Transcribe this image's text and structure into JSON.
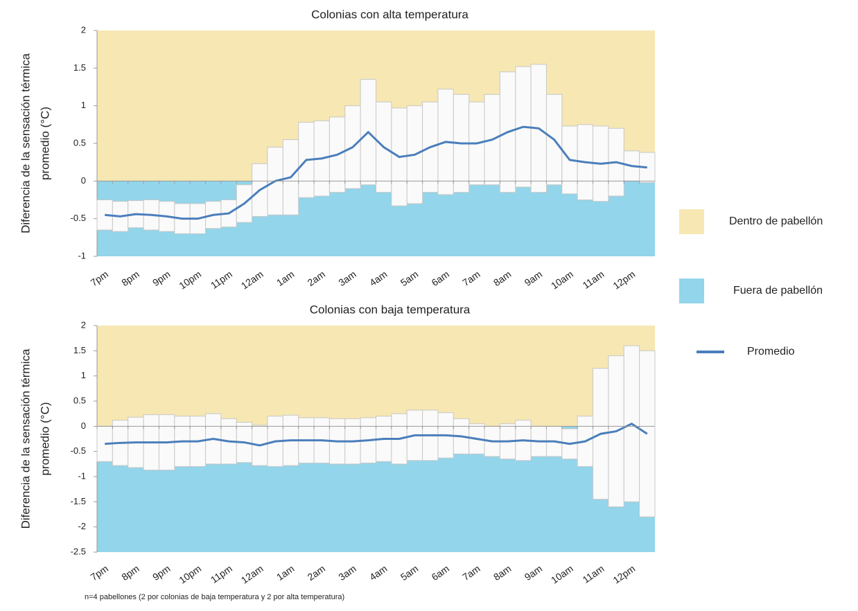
{
  "chart_data": [
    {
      "type": "line",
      "title": "Colonias con alta temperatura",
      "ylabel": [
        "Diferencia de la sensación térmica",
        "promedio (°C)"
      ],
      "categories": [
        "7pm",
        null,
        "8pm",
        null,
        "9pm",
        null,
        "10pm",
        null,
        "11pm",
        null,
        "12am",
        null,
        "1am",
        null,
        "2am",
        null,
        "3am",
        null,
        "4am",
        null,
        "5am",
        null,
        "6am",
        null,
        "7am",
        null,
        "8am",
        null,
        "9am",
        null,
        "10am",
        null,
        "11am",
        null,
        "12pm",
        null
      ],
      "series": [
        {
          "name": "Promedio",
          "color": "#4a7ebb",
          "values": [
            -0.45,
            -0.47,
            -0.44,
            -0.45,
            -0.47,
            -0.5,
            -0.5,
            -0.45,
            -0.43,
            -0.3,
            -0.12,
            0.0,
            0.05,
            0.28,
            0.3,
            0.35,
            0.45,
            0.65,
            0.45,
            0.32,
            0.35,
            0.45,
            0.52,
            0.5,
            0.5,
            0.55,
            0.65,
            0.72,
            0.7,
            0.55,
            0.28,
            0.25,
            0.23,
            0.25,
            0.2,
            0.18
          ],
          "errors": [
            0.2,
            0.2,
            0.18,
            0.2,
            0.2,
            0.2,
            0.2,
            0.18,
            0.18,
            0.25,
            0.35,
            0.45,
            0.5,
            0.5,
            0.5,
            0.5,
            0.55,
            0.7,
            0.6,
            0.65,
            0.65,
            0.6,
            0.7,
            0.65,
            0.55,
            0.6,
            0.8,
            0.8,
            0.85,
            0.6,
            0.45,
            0.5,
            0.5,
            0.45,
            0.2,
            0.2
          ]
        }
      ],
      "ylim": [
        -1,
        2
      ],
      "yticks": [
        -1,
        -0.5,
        0,
        0.5,
        1,
        1.5,
        2
      ]
    },
    {
      "type": "line",
      "title": "Colonias con baja temperatura",
      "ylabel": [
        "Diferencia de la sensación térmica",
        "promedio (°C)"
      ],
      "categories": [
        "7pm",
        null,
        "8pm",
        null,
        "9pm",
        null,
        "10pm",
        null,
        "11pm",
        null,
        "12am",
        null,
        "1am",
        null,
        "2am",
        null,
        "3am",
        null,
        "4am",
        null,
        "5am",
        null,
        "6am",
        null,
        "7am",
        null,
        "8am",
        null,
        "9am",
        null,
        "10am",
        null,
        "11am",
        null,
        "12pm",
        null
      ],
      "series": [
        {
          "name": "Promedio",
          "color": "#4a7ebb",
          "values": [
            -0.35,
            -0.33,
            -0.32,
            -0.32,
            -0.32,
            -0.3,
            -0.3,
            -0.25,
            -0.3,
            -0.32,
            -0.38,
            -0.3,
            -0.28,
            -0.28,
            -0.28,
            -0.3,
            -0.3,
            -0.28,
            -0.25,
            -0.25,
            -0.18,
            -0.18,
            -0.18,
            -0.2,
            -0.25,
            -0.3,
            -0.3,
            -0.28,
            -0.3,
            -0.3,
            -0.35,
            -0.3,
            -0.15,
            -0.1,
            0.05,
            -0.15
          ],
          "errors": [
            0.35,
            0.45,
            0.5,
            0.55,
            0.55,
            0.5,
            0.5,
            0.5,
            0.45,
            0.4,
            0.4,
            0.5,
            0.5,
            0.45,
            0.45,
            0.45,
            0.45,
            0.45,
            0.45,
            0.5,
            0.5,
            0.5,
            0.45,
            0.35,
            0.3,
            0.3,
            0.35,
            0.4,
            0.3,
            0.3,
            0.3,
            0.5,
            1.3,
            1.5,
            1.55,
            1.65
          ]
        }
      ],
      "ylim": [
        -2.5,
        2
      ],
      "yticks": [
        -2.5,
        -2,
        -1.5,
        -1,
        -0.5,
        0,
        0.5,
        1,
        1.5,
        2
      ]
    }
  ],
  "legend": [
    {
      "name": "Dentro de pabellón",
      "color": "#f6e7b3"
    },
    {
      "name": "Fuera de pabellón",
      "color": "#93d5ea"
    }
  ],
  "note": "n=4 pabellones  (2 por colonias de baja temperatura y 2 por alta temperatura)"
}
